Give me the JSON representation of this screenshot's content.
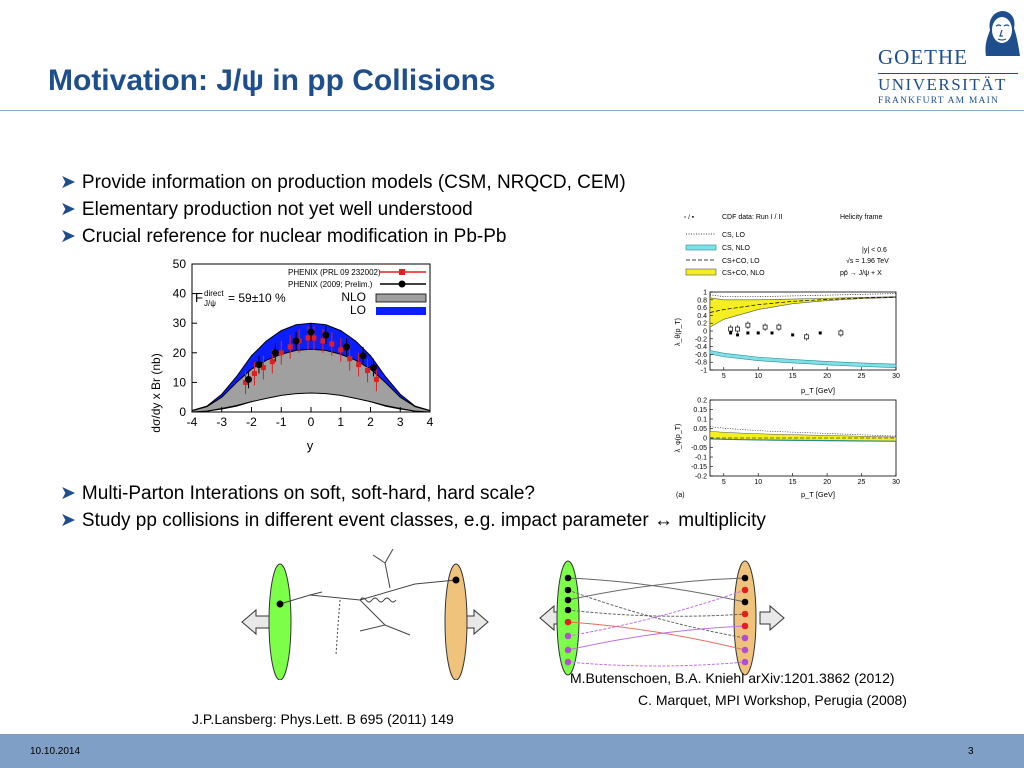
{
  "slide": {
    "title": "Motivation: J/ψ in pp Collisions",
    "date": "10.10.2014",
    "page": "3"
  },
  "logo": {
    "line1": "GOETHE",
    "line2": "UNIVERSITÄT",
    "line3": "FRANKFURT AM MAIN"
  },
  "bullets_top": [
    "Provide information on production models (CSM, NRQCD, CEM)",
    "Elementary production not yet well understood",
    "Crucial reference for nuclear modification in Pb-Pb"
  ],
  "bullets_bottom": [
    "Multi-Parton Interations on soft, soft-hard, hard scale?",
    "Study pp collisions in different event classes, e.g. impact parameter ↔ multiplicity"
  ],
  "references": {
    "left": "J.P.Lansberg: Phys.Lett. B 695 (2011) 149",
    "right1": "M.Butenschoen, B.A. Kniehl arXiv:1201.3862 (2012)",
    "right2": "C. Marquet, MPI Workshop, Perugia (2008)"
  },
  "chart_data": [
    {
      "type": "line",
      "xlabel": "y",
      "ylabel": "dσ/dy x Br (nb)",
      "xlim": [
        -4,
        4
      ],
      "ylim": [
        0,
        50
      ],
      "xticks": [
        "-4",
        "-3",
        "-2",
        "-1",
        "0",
        "1",
        "2",
        "3",
        "4"
      ],
      "yticks": [
        "0",
        "10",
        "20",
        "30",
        "40",
        "50"
      ],
      "annotation_main": "F",
      "annotation_sup": "direct",
      "annotation_sub": "J/ψ",
      "annotation_value": "= 59±10 %",
      "legend": [
        "PHENIX (PRL 09 232002)",
        "PHENIX (2009; Prelim.)",
        "NLO",
        "LO"
      ],
      "band_lo": {
        "x": [
          -4,
          -3.5,
          -3,
          -2.5,
          -2,
          -1.5,
          -1,
          -0.5,
          0,
          0.5,
          1,
          1.5,
          2,
          2.5,
          3,
          3.5,
          4
        ],
        "upper": [
          0.5,
          2,
          6,
          12,
          19,
          24,
          27.5,
          29.5,
          30,
          29.5,
          27.5,
          24,
          19,
          12,
          6,
          2,
          0.5
        ],
        "lower": [
          0,
          0.3,
          1,
          2,
          3.5,
          4.8,
          5.8,
          6.4,
          6.6,
          6.4,
          5.8,
          4.8,
          3.5,
          2,
          1,
          0.3,
          0
        ]
      },
      "band_nlo": {
        "x": [
          -4,
          -3.5,
          -3,
          -2.5,
          -2,
          -1.5,
          -1,
          -0.5,
          0,
          0.5,
          1,
          1.5,
          2,
          2.5,
          3,
          3.5,
          4
        ],
        "upper": [
          0.4,
          1.8,
          5,
          10,
          14.5,
          17.5,
          19.5,
          20.8,
          21.2,
          20.8,
          19.5,
          17.5,
          14.5,
          10,
          5,
          1.8,
          0.4
        ],
        "lower": [
          0,
          0.3,
          1.2,
          2.2,
          3.5,
          4.6,
          5.6,
          6.2,
          6.4,
          6.2,
          5.6,
          4.6,
          3.5,
          2.2,
          1.2,
          0.3,
          0
        ]
      },
      "phenix_prl": {
        "x": [
          -2.2,
          -1.9,
          -1.6,
          -1.3,
          -1.0,
          -0.7,
          -0.4,
          -0.1,
          0.1,
          0.4,
          0.7,
          1.0,
          1.3,
          1.6,
          1.9,
          2.2
        ],
        "y": [
          10,
          13,
          15,
          17,
          20,
          22,
          24,
          25,
          25,
          24,
          23,
          21,
          18,
          16,
          14,
          11
        ]
      },
      "phenix_prelim": {
        "x": [
          -2.1,
          -1.75,
          -1.2,
          -0.5,
          0,
          0.5,
          1.2,
          1.75,
          2.1
        ],
        "y": [
          11,
          16,
          20,
          24,
          27,
          26,
          22,
          19,
          15
        ]
      }
    },
    {
      "type": "line",
      "xlabel": "p_T [GeV]",
      "ylabel": "λ_θ(p_T)",
      "xlim": [
        3,
        30
      ],
      "ylim": [
        -1,
        1
      ],
      "xticks": [
        "5",
        "10",
        "15",
        "20",
        "25",
        "30"
      ],
      "yticks": [
        "1",
        "0.8",
        "0.6",
        "0.4",
        "0.2",
        "0",
        "-0.2",
        "-0.4",
        "-0.6",
        "-0.8",
        "-1"
      ],
      "legend": [
        "CDF data: Run I / II",
        "CS, LO",
        "CS, NLO",
        "CS+CO, LO",
        "CS+CO, NLO"
      ],
      "legend_marker": "▫ / ▪",
      "header_right": "Helicity frame",
      "info": [
        "|y| < 0.6",
        "√s = 1.96 TeV",
        "pp̄ → J/ψ + X"
      ],
      "cs_nlo": {
        "x": [
          3,
          5,
          10,
          15,
          20,
          25,
          30
        ],
        "y": [
          -0.55,
          -0.62,
          -0.72,
          -0.78,
          -0.83,
          -0.87,
          -0.9
        ]
      },
      "csco_nlo_upper": {
        "x": [
          3,
          5,
          10,
          15,
          20,
          25,
          30
        ],
        "y": [
          0.85,
          0.8,
          0.8,
          0.82,
          0.84,
          0.86,
          0.88
        ]
      },
      "csco_nlo_lower": {
        "x": [
          3,
          5,
          10,
          15,
          20,
          25,
          30
        ],
        "y": [
          0.1,
          0.3,
          0.55,
          0.7,
          0.78,
          0.83,
          0.86
        ]
      },
      "cdf_open": {
        "x": [
          6,
          7,
          8.5,
          11,
          13,
          17,
          22
        ],
        "y": [
          0.05,
          0.05,
          0.15,
          0.1,
          0.1,
          -0.15,
          -0.05
        ]
      },
      "cdf_filled": {
        "x": [
          6,
          7,
          8.5,
          10,
          12,
          15,
          19
        ],
        "y": [
          -0.05,
          -0.1,
          -0.05,
          -0.05,
          -0.05,
          -0.1,
          -0.05
        ]
      }
    },
    {
      "type": "line",
      "xlabel": "p_T [GeV]",
      "ylabel": "λ_φ(p_T)",
      "xlim": [
        3,
        30
      ],
      "ylim": [
        -0.2,
        0.2
      ],
      "xticks": [
        "5",
        "10",
        "15",
        "20",
        "25",
        "30"
      ],
      "yticks": [
        "0.2",
        "0.15",
        "0.1",
        "0.05",
        "0",
        "-0.05",
        "-0.1",
        "-0.15",
        "-0.2"
      ],
      "panel_label": "(a)"
    }
  ]
}
